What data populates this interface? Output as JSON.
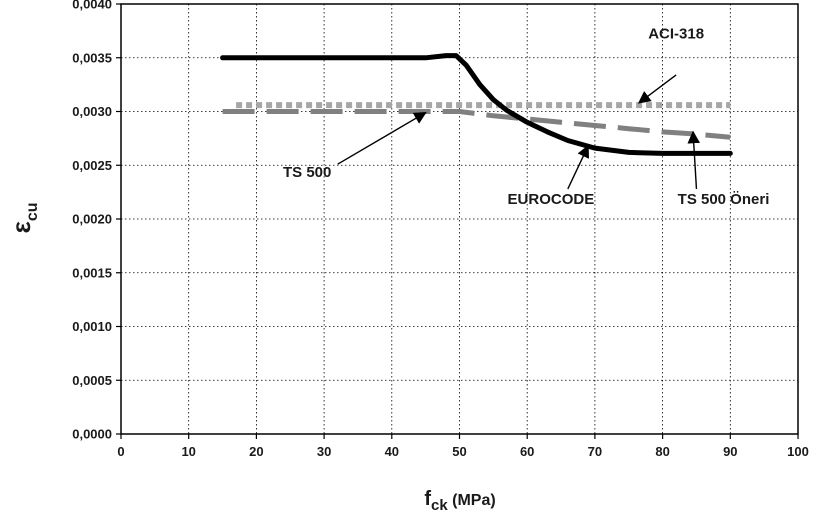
{
  "chart_data": {
    "type": "line",
    "title": "",
    "xlabel": {
      "main": "f",
      "sub": "ck",
      "suffix": " (MPa)"
    },
    "ylabel": {
      "main": "ε",
      "sub": "cu"
    },
    "xlim": [
      0,
      100
    ],
    "ylim": [
      0,
      0.004
    ],
    "x_ticks": [
      0,
      10,
      20,
      30,
      40,
      50,
      60,
      70,
      80,
      90,
      100
    ],
    "x_tick_labels": [
      "0",
      "10",
      "20",
      "30",
      "40",
      "50",
      "60",
      "70",
      "80",
      "90",
      "100"
    ],
    "y_ticks": [
      0,
      0.0005,
      0.001,
      0.0015,
      0.002,
      0.0025,
      0.003,
      0.0035,
      0.004
    ],
    "y_tick_labels": [
      "0,0000",
      "0,0005",
      "0,0010",
      "0,0015",
      "0,0020",
      "0,0025",
      "0,0030",
      "0,0035",
      "0,0040"
    ],
    "grid": true,
    "series": [
      {
        "name": "EUROCODE",
        "color": "#000000",
        "style": "solid",
        "points": [
          [
            15,
            0.0035
          ],
          [
            45,
            0.0035
          ],
          [
            48,
            0.00352
          ],
          [
            49.5,
            0.00352
          ],
          [
            51,
            0.00343
          ],
          [
            53,
            0.00325
          ],
          [
            55,
            0.00311
          ],
          [
            57,
            0.00301
          ],
          [
            60,
            0.0029
          ],
          [
            63,
            0.00281
          ],
          [
            66,
            0.00273
          ],
          [
            70,
            0.00266
          ],
          [
            75,
            0.00262
          ],
          [
            80,
            0.00261
          ],
          [
            90,
            0.00261
          ]
        ]
      },
      {
        "name": "TS 500",
        "color": "#808080",
        "style": "long-dash",
        "points": [
          [
            15,
            0.003
          ],
          [
            50,
            0.003
          ],
          [
            55,
            0.00296
          ],
          [
            60,
            0.00293
          ],
          [
            65,
            0.0029
          ],
          [
            70,
            0.00287
          ],
          [
            75,
            0.00284
          ],
          [
            80,
            0.00281
          ],
          [
            85,
            0.00279
          ],
          [
            90,
            0.00276
          ]
        ]
      },
      {
        "name": "ACI-318",
        "color": "#a6a6a6",
        "style": "dotted",
        "points": [
          [
            17,
            0.00306
          ],
          [
            90,
            0.00306
          ]
        ]
      }
    ],
    "annotations": [
      {
        "label": "ACI-318",
        "text_at": [
          82,
          0.00368
        ],
        "arrow_from": [
          82,
          0.00334
        ],
        "arrow_to": [
          76.5,
          0.00308
        ]
      },
      {
        "label": "TS 500",
        "text_at": [
          27.5,
          0.00239
        ],
        "arrow_from": [
          32,
          0.00251
        ],
        "arrow_to": [
          45,
          0.00299
        ]
      },
      {
        "label": "EUROCODE",
        "text_at": [
          63.5,
          0.00214
        ],
        "arrow_from": [
          66,
          0.00228
        ],
        "arrow_to": [
          69,
          0.00268
        ]
      },
      {
        "label": "TS 500  Öneri",
        "text_at": [
          89,
          0.00214
        ],
        "arrow_from": [
          85,
          0.00228
        ],
        "arrow_to": [
          84.5,
          0.00281
        ]
      }
    ]
  }
}
